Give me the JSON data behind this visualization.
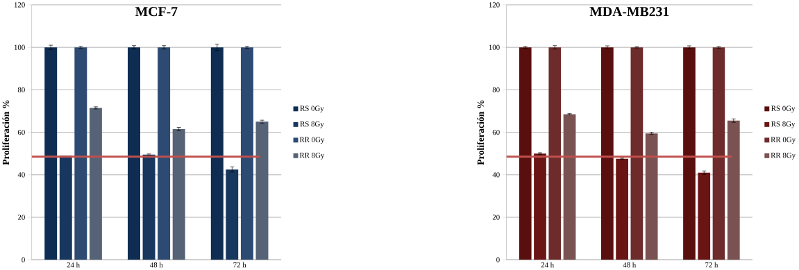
{
  "chart_data": [
    {
      "type": "bar",
      "title": "MCF-7",
      "ylabel": "Proliferación %",
      "categories": [
        "24 h",
        "48 h",
        "72 h"
      ],
      "series": [
        {
          "name": "RS 0Gy",
          "color": "#0f2d52",
          "values": [
            100,
            100,
            100
          ],
          "errors": [
            1,
            0.8,
            1.5
          ]
        },
        {
          "name": "RS 8Gy",
          "color": "#17375e",
          "values": [
            49,
            49.5,
            42.5
          ],
          "errors": [
            null,
            0.3,
            1.2
          ]
        },
        {
          "name": "RR 0Gy",
          "color": "#2d4a72",
          "values": [
            100,
            100,
            100
          ],
          "errors": [
            0.5,
            0.8,
            0.5
          ]
        },
        {
          "name": "RR 8Gy",
          "color": "#566275",
          "values": [
            71.5,
            61.5,
            65
          ],
          "errors": [
            0.5,
            0.8,
            0.7
          ]
        }
      ],
      "ylim": [
        0,
        120
      ],
      "yticks": [
        0,
        20,
        40,
        60,
        80,
        100,
        120
      ],
      "grid": "y",
      "legend": "right",
      "ref_lines": [
        {
          "axis": "y",
          "value": 48.5,
          "color": "#c0504d"
        }
      ]
    },
    {
      "type": "bar",
      "title": "MDA-MB231",
      "ylabel": "Proliferación %",
      "categories": [
        "24 h",
        "48 h",
        "72 h"
      ],
      "series": [
        {
          "name": "RS 0Gy",
          "color": "#5a0f0f",
          "values": [
            100,
            100,
            100
          ],
          "errors": [
            0.4,
            0.7,
            0.7
          ]
        },
        {
          "name": "RS 8Gy",
          "color": "#6b1414",
          "values": [
            50,
            47.5,
            41
          ],
          "errors": [
            0.4,
            0.3,
            0.8
          ]
        },
        {
          "name": "RR 0Gy",
          "color": "#6e2b2b",
          "values": [
            100,
            100,
            100
          ],
          "errors": [
            0.8,
            0.3,
            0.4
          ]
        },
        {
          "name": "RR 8Gy",
          "color": "#7a5252",
          "values": [
            68.5,
            59.5,
            65.5
          ],
          "errors": [
            0.3,
            0.5,
            0.8
          ]
        }
      ],
      "ylim": [
        0,
        120
      ],
      "yticks": [
        0,
        20,
        40,
        60,
        80,
        100,
        120
      ],
      "grid": "y",
      "legend": "right",
      "ref_lines": [
        {
          "axis": "y",
          "value": 48.5,
          "color": "#c0504d"
        }
      ]
    }
  ]
}
